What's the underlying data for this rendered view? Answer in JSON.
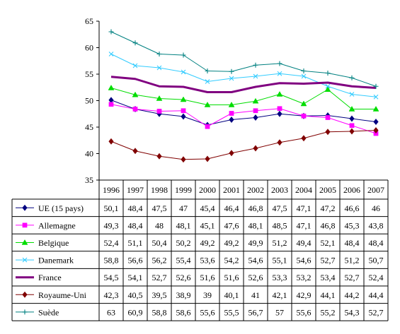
{
  "chart_data": {
    "type": "line",
    "title": "",
    "xlabel": "",
    "ylabel": "",
    "ylim": [
      35,
      65
    ],
    "yticks": [
      "35",
      "40",
      "45",
      "50",
      "55",
      "60",
      "65"
    ],
    "grid": false,
    "legend": "data table",
    "x": [
      "1996",
      "1997",
      "1998",
      "1999",
      "2000",
      "2001",
      "2002",
      "2003",
      "2004",
      "2005",
      "2006",
      "2007"
    ],
    "series": [
      {
        "name": "UE (15 pays)",
        "color": "#000080",
        "marker": "diamond",
        "values": [
          50.1,
          48.4,
          47.5,
          47,
          45.4,
          46.4,
          46.8,
          47.5,
          47.1,
          47.2,
          46.6,
          46
        ],
        "labels": [
          "50,1",
          "48,4",
          "47,5",
          "47",
          "45,4",
          "46,4",
          "46,8",
          "47,5",
          "47,1",
          "47,2",
          "46,6",
          "46"
        ]
      },
      {
        "name": "Allemagne",
        "color": "#ff00ff",
        "marker": "square",
        "values": [
          49.3,
          48.4,
          48,
          48.1,
          45.1,
          47.6,
          48.1,
          48.5,
          47.1,
          46.8,
          45.3,
          43.8
        ],
        "labels": [
          "49,3",
          "48,4",
          "48",
          "48,1",
          "45,1",
          "47,6",
          "48,1",
          "48,5",
          "47,1",
          "46,8",
          "45,3",
          "43,8"
        ]
      },
      {
        "name": "Belgique",
        "color": "#00dd00",
        "marker": "triangle",
        "values": [
          52.4,
          51.1,
          50.4,
          50.2,
          49.2,
          49.2,
          49.9,
          51.2,
          49.4,
          52.1,
          48.4,
          48.4
        ],
        "labels": [
          "52,4",
          "51,1",
          "50,4",
          "50,2",
          "49,2",
          "49,2",
          "49,9",
          "51,2",
          "49,4",
          "52,1",
          "48,4",
          "48,4"
        ]
      },
      {
        "name": "Danemark",
        "color": "#33ccff",
        "marker": "x",
        "values": [
          58.8,
          56.6,
          56.2,
          55.4,
          53.6,
          54.2,
          54.6,
          55.1,
          54.6,
          52.7,
          51.2,
          50.7
        ],
        "labels": [
          "58,8",
          "56,6",
          "56,2",
          "55,4",
          "53,6",
          "54,2",
          "54,6",
          "55,1",
          "54,6",
          "52,7",
          "51,2",
          "50,7"
        ]
      },
      {
        "name": "France",
        "color": "#800080",
        "marker": "none",
        "values": [
          54.5,
          54.1,
          52.7,
          52.6,
          51.6,
          51.6,
          52.6,
          53.3,
          53.2,
          53.4,
          52.7,
          52.4
        ],
        "labels": [
          "54,5",
          "54,1",
          "52,7",
          "52,6",
          "51,6",
          "51,6",
          "52,6",
          "53,3",
          "53,2",
          "53,4",
          "52,7",
          "52,4"
        ]
      },
      {
        "name": "Royaume-Uni",
        "color": "#800000",
        "marker": "diamond",
        "values": [
          42.3,
          40.5,
          39.5,
          38.9,
          39,
          40.1,
          41,
          42.1,
          42.9,
          44.1,
          44.2,
          44.4
        ],
        "labels": [
          "42,3",
          "40,5",
          "39,5",
          "38,9",
          "39",
          "40,1",
          "41",
          "42,1",
          "42,9",
          "44,1",
          "44,2",
          "44,4"
        ]
      },
      {
        "name": "Suède",
        "color": "#008080",
        "marker": "plus",
        "values": [
          63,
          60.9,
          58.8,
          58.6,
          55.6,
          55.5,
          56.7,
          57,
          55.6,
          55.2,
          54.3,
          52.7
        ],
        "labels": [
          "63",
          "60,9",
          "58,8",
          "58,6",
          "55,6",
          "55,5",
          "56,7",
          "57",
          "55,6",
          "55,2",
          "54,3",
          "52,7"
        ]
      }
    ]
  }
}
